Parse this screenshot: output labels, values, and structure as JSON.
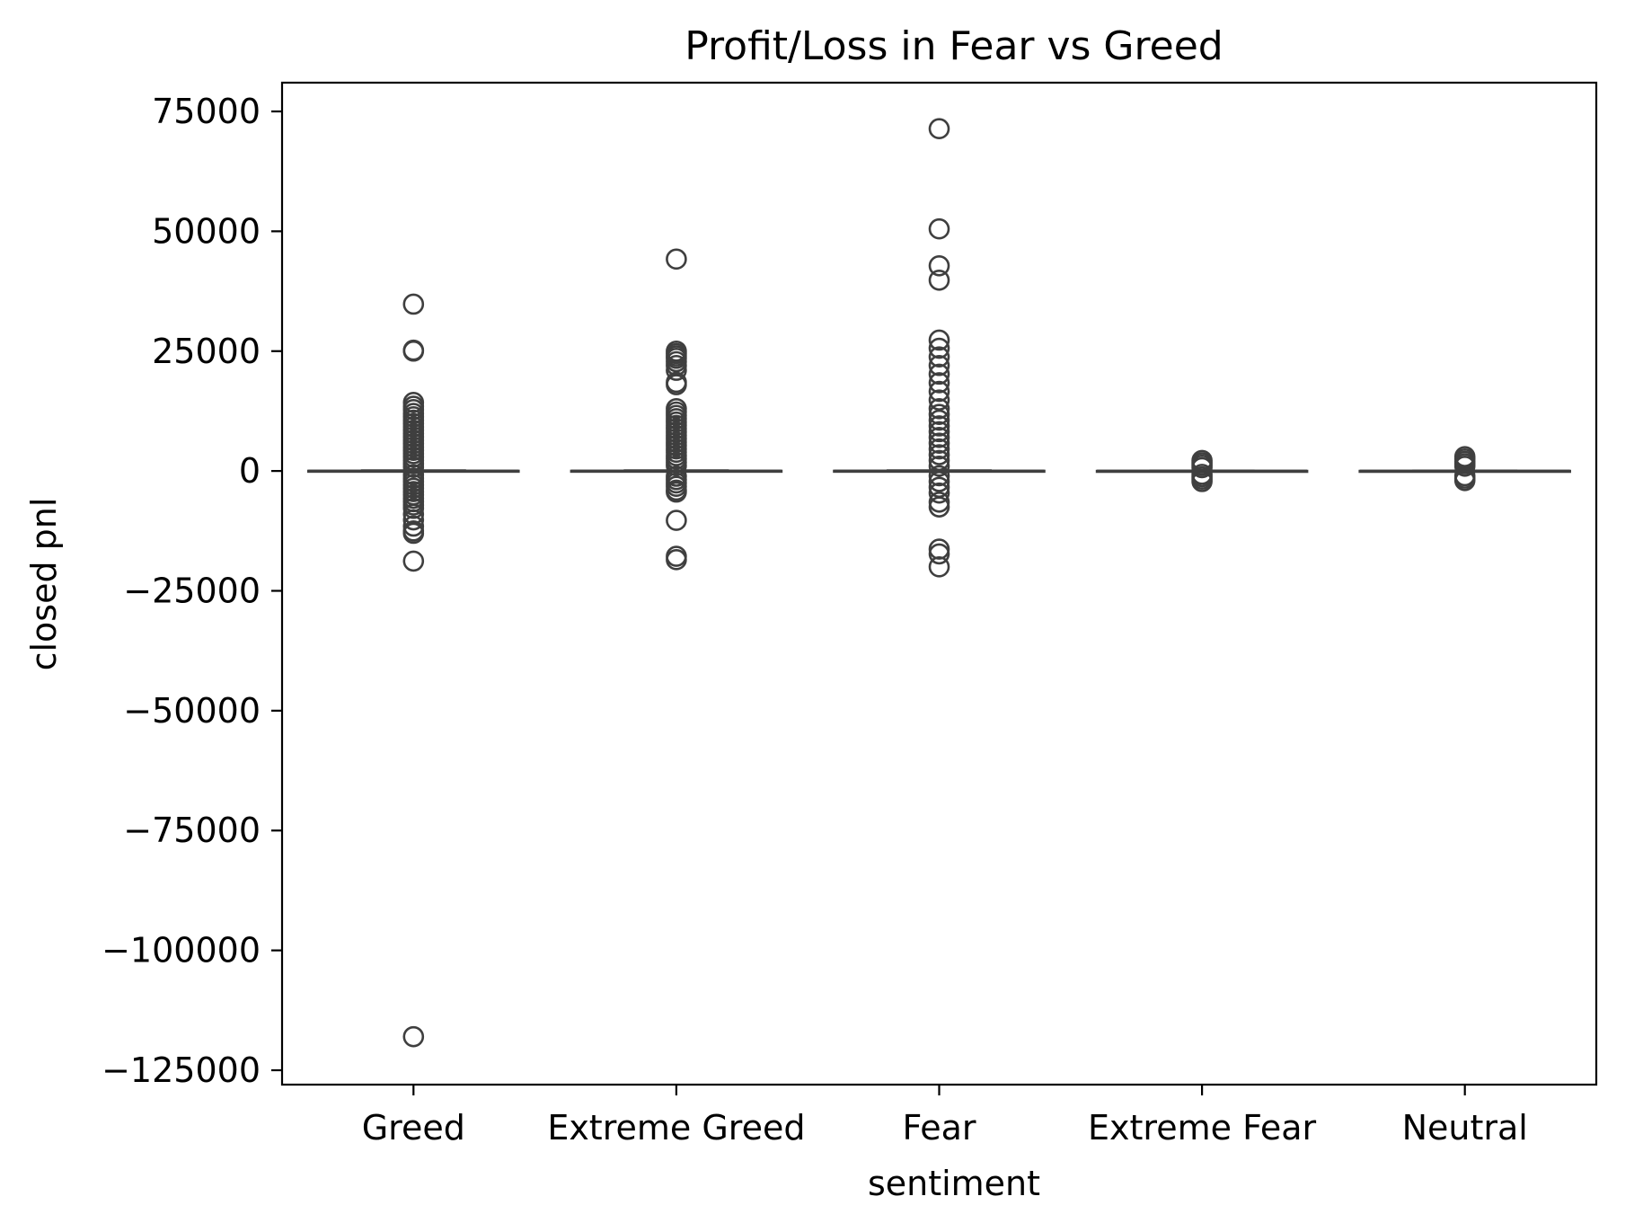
{
  "chart_data": {
    "type": "box",
    "title": "Profit/Loss in Fear vs Greed",
    "xlabel": "sentiment",
    "ylabel": "closed pnl",
    "categories": [
      "Greed",
      "Extreme Greed",
      "Fear",
      "Extreme Fear",
      "Neutral"
    ],
    "ylim": [
      -128000,
      81000
    ],
    "yticks": [
      75000,
      50000,
      25000,
      0,
      -25000,
      -50000,
      -75000,
      -100000,
      -125000
    ],
    "ytick_labels": [
      "75000",
      "50000",
      "25000",
      "0",
      "−25000",
      "−50000",
      "−75000",
      "−100000",
      "−125000"
    ],
    "grid": false,
    "colors": {
      "box": "#3f3f3f",
      "axes": "#000000",
      "background": "#ffffff"
    },
    "series": [
      {
        "category": "Greed",
        "q1": -20,
        "median": 0,
        "q3": 40,
        "whisker_low": -60,
        "whisker_high": 120,
        "outliers": [
          34800,
          25000,
          25200,
          14300,
          13500,
          12800,
          12000,
          11300,
          10600,
          9900,
          9200,
          8500,
          7800,
          7100,
          6400,
          5700,
          5000,
          4300,
          3600,
          2900,
          2200,
          1500,
          800,
          -800,
          -1500,
          -2200,
          -2900,
          -3600,
          -4300,
          -5000,
          -5700,
          -6400,
          -7100,
          -7800,
          -9000,
          -10200,
          -11500,
          -12500,
          -13000,
          -18800,
          -118000
        ]
      },
      {
        "category": "Extreme Greed",
        "q1": -20,
        "median": 0,
        "q3": 40,
        "whisker_low": -60,
        "whisker_high": 120,
        "outliers": [
          44200,
          25000,
          24500,
          24000,
          23500,
          22800,
          22000,
          21000,
          18500,
          18000,
          13000,
          12300,
          11600,
          10900,
          10200,
          9500,
          8800,
          8100,
          7400,
          6700,
          6000,
          5300,
          4600,
          3900,
          3200,
          2500,
          1800,
          1100,
          -1100,
          -1800,
          -2500,
          -3200,
          -4000,
          -4400,
          -10300,
          -17800,
          -18500
        ]
      },
      {
        "category": "Fear",
        "q1": -20,
        "median": 0,
        "q3": 40,
        "whisker_low": -60,
        "whisker_high": 120,
        "outliers": [
          71400,
          50500,
          42800,
          39800,
          27300,
          25600,
          23800,
          22000,
          20200,
          18400,
          16600,
          14800,
          13000,
          11800,
          10600,
          9400,
          8200,
          7000,
          5800,
          4600,
          3400,
          2200,
          1000,
          -1000,
          -2200,
          -3400,
          -4600,
          -6500,
          -7500,
          -16300,
          -17300,
          -20000
        ]
      },
      {
        "category": "Extreme Fear",
        "q1": -10,
        "median": 0,
        "q3": 20,
        "whisker_low": -40,
        "whisker_high": 60,
        "outliers": [
          2200,
          1700,
          1200,
          700,
          -700,
          -1200,
          -1700,
          -2200
        ]
      },
      {
        "category": "Neutral",
        "q1": -10,
        "median": 0,
        "q3": 20,
        "whisker_low": -40,
        "whisker_high": 60,
        "outliers": [
          3000,
          2500,
          2000,
          1500,
          1000,
          -1000,
          -1500,
          -2000
        ]
      }
    ]
  }
}
